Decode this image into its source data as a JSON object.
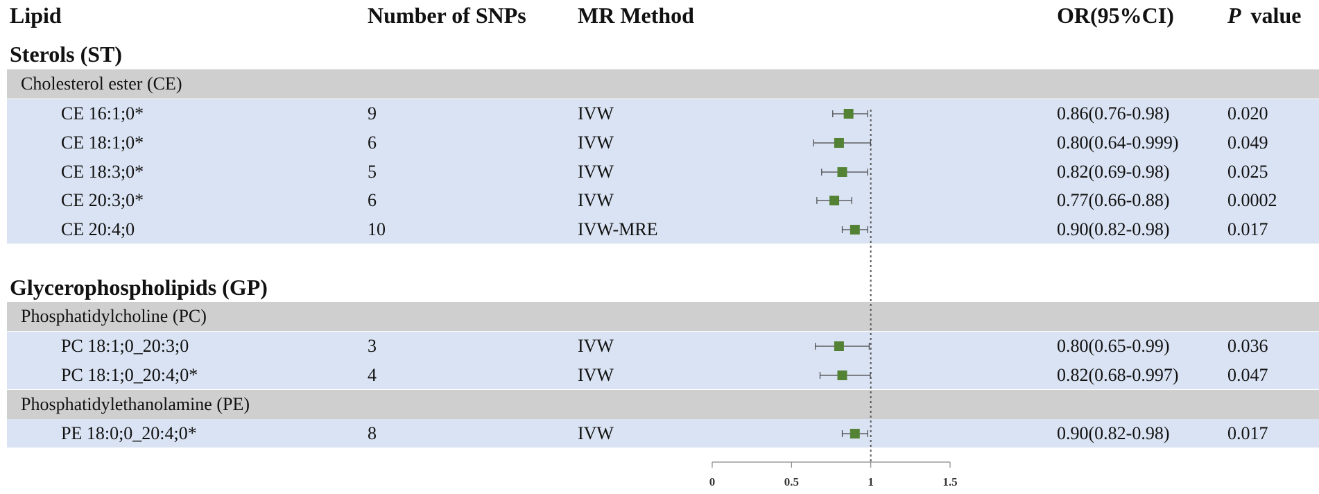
{
  "header": {
    "lipid": "Lipid",
    "snps": "Number of SNPs",
    "method": "MR Method",
    "or": "OR(95%CI)",
    "p_italic": "P",
    "p_word": "value"
  },
  "sections": [
    {
      "title": "Sterols (ST)",
      "groups": [
        {
          "subtitle": "Cholesterol ester (CE)",
          "rows": [
            {
              "lipid": "CE 16:1;0*",
              "snps": "9",
              "method": "IVW",
              "or_text": "0.86(0.76-0.98)",
              "p": "0.020"
            },
            {
              "lipid": "CE 18:1;0*",
              "snps": "6",
              "method": "IVW",
              "or_text": "0.80(0.64-0.999)",
              "p": "0.049"
            },
            {
              "lipid": "CE 18:3;0*",
              "snps": "5",
              "method": "IVW",
              "or_text": "0.82(0.69-0.98)",
              "p": "0.025"
            },
            {
              "lipid": "CE 20:3;0*",
              "snps": "6",
              "method": "IVW",
              "or_text": "0.77(0.66-0.88)",
              "p": "0.0002"
            },
            {
              "lipid": "CE 20:4;0",
              "snps": "10",
              "method": "IVW-MRE",
              "or_text": "0.90(0.82-0.98)",
              "p": "0.017"
            }
          ]
        }
      ]
    },
    {
      "title": "Glycerophospholipids (GP)",
      "groups": [
        {
          "subtitle": "Phosphatidylcholine (PC)",
          "rows": [
            {
              "lipid": "PC 18:1;0_20:3;0",
              "snps": "3",
              "method": "IVW",
              "or_text": "0.80(0.65-0.99)",
              "p": "0.036"
            },
            {
              "lipid": "PC 18:1;0_20:4;0*",
              "snps": "4",
              "method": "IVW",
              "or_text": "0.82(0.68-0.997)",
              "p": "0.047"
            }
          ]
        },
        {
          "subtitle": "Phosphatidylethanolamine (PE)",
          "rows": [
            {
              "lipid": "PE 18:0;0_20:4;0*",
              "snps": "8",
              "method": "IVW",
              "or_text": "0.90(0.82-0.98)",
              "p": "0.017"
            }
          ]
        }
      ]
    }
  ],
  "chart_data": {
    "type": "forest",
    "reference_line": 1,
    "xlim": [
      0,
      1.5
    ],
    "xticks": [
      "0",
      "0.5",
      "1",
      "1.5"
    ],
    "marker_color": "#548235",
    "categories": [
      "CE 16:1;0*",
      "CE 18:1;0*",
      "CE 18:3;0*",
      "CE 20:3;0*",
      "CE 20:4;0",
      "PC 18:1;0_20:3;0",
      "PC 18:1;0_20:4;0*",
      "PE 18:0;0_20:4;0*"
    ],
    "or": [
      0.86,
      0.8,
      0.82,
      0.77,
      0.9,
      0.8,
      0.82,
      0.9
    ],
    "ci_low": [
      0.76,
      0.64,
      0.69,
      0.66,
      0.82,
      0.65,
      0.68,
      0.82
    ],
    "ci_high": [
      0.98,
      0.999,
      0.98,
      0.88,
      0.98,
      0.99,
      0.997,
      0.98
    ]
  }
}
